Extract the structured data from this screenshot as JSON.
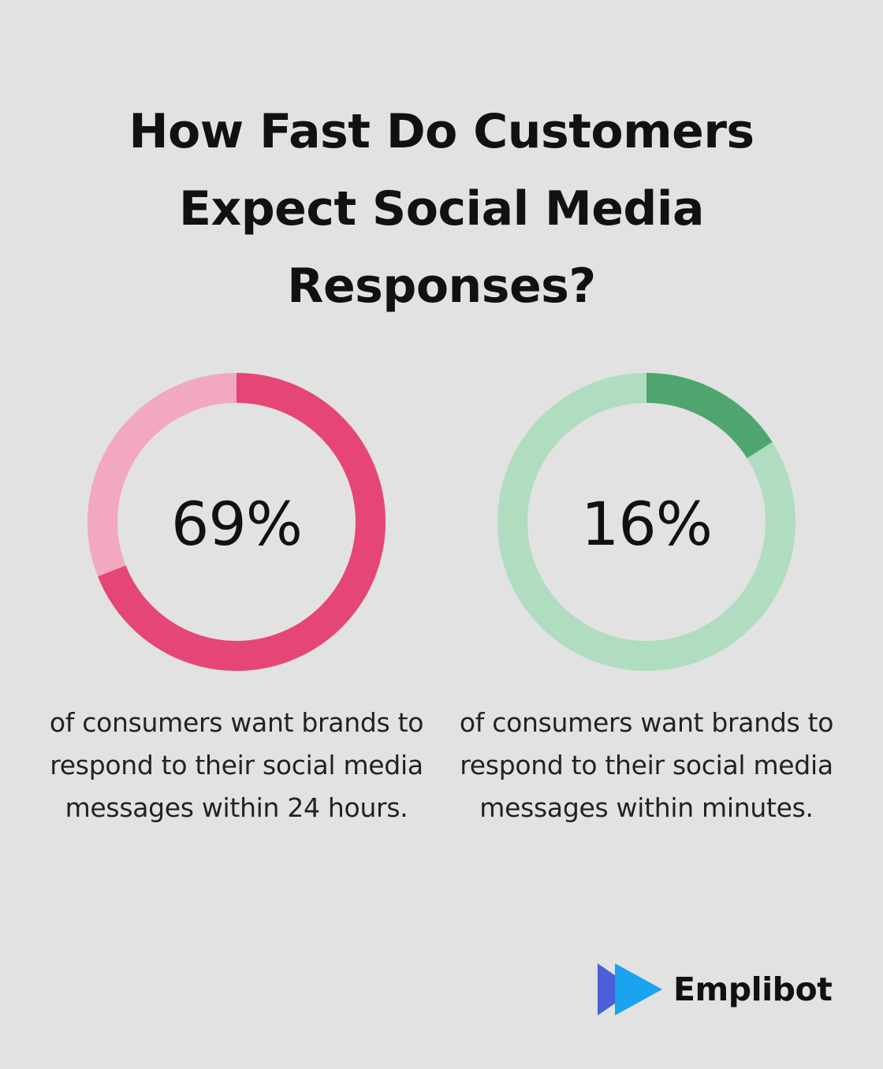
{
  "title": "How Fast Do Customers Expect Social Media Responses?",
  "chart_data": [
    {
      "type": "pie",
      "variant": "donut",
      "value_percent": 69,
      "label": "69%",
      "description": "of consumers want brands to respond to their social media messages within 24 hours.",
      "colors": {
        "fill": "#e54676",
        "track": "#f2a8c0"
      }
    },
    {
      "type": "pie",
      "variant": "donut",
      "value_percent": 16,
      "label": "16%",
      "description": "of consumers want brands to respond to their social media messages within minutes.",
      "colors": {
        "fill": "#4ea66e",
        "track": "#b0dcc0"
      }
    }
  ],
  "brand": {
    "name": "Emplibot",
    "icon": "play-arrows-icon",
    "colors": {
      "primary": "#1aa3ef",
      "secondary": "#4a5fd8"
    }
  },
  "colors": {
    "background": "#e1e2e1",
    "text": "#111111"
  }
}
